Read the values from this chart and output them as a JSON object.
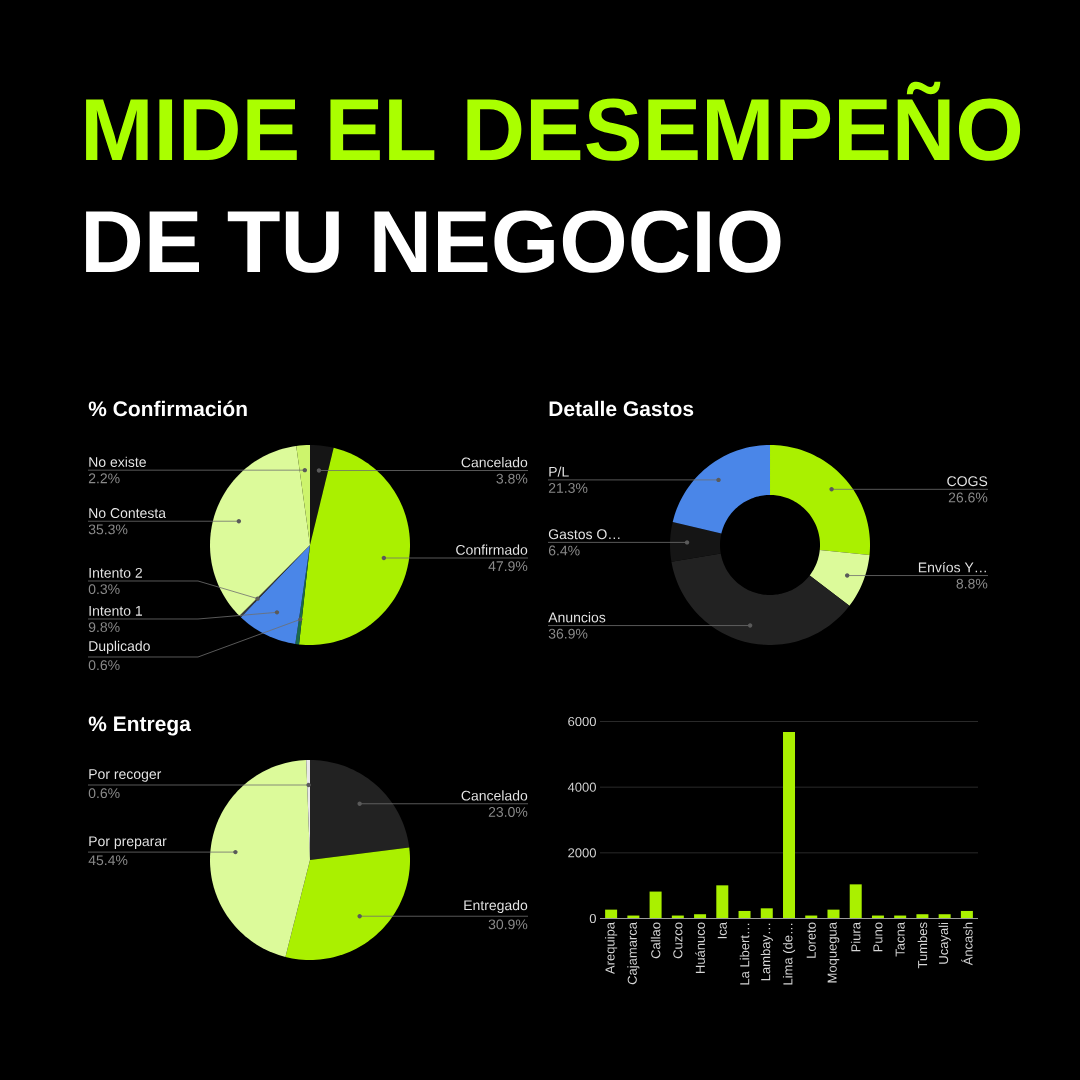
{
  "chart_data": [
    {
      "type": "other",
      "title": "MIDE EL DESEMPEÑO",
      "subtitle": "DE TU NEGOCIO"
    },
    {
      "type": "pie",
      "title": "% Confirmación",
      "categories": [
        "Cancelado",
        "Confirmado",
        "Duplicado",
        "Intento 1",
        "Intento 2",
        "No Contesta",
        "No existe"
      ],
      "values": [
        3.8,
        47.9,
        0.6,
        9.8,
        0.3,
        35.3,
        2.2
      ],
      "colors": [
        "#151515",
        "#aaf000",
        "#1b6b4a",
        "#4a86e8",
        "#3a3a3a",
        "#dcfa9a",
        "#cdf46c"
      ],
      "value_labels": [
        "3.8%",
        "47.9%",
        "0.6%",
        "9.8%",
        "0.3%",
        "35.3%",
        "2.2%"
      ]
    },
    {
      "type": "donut",
      "title": "Detalle Gastos",
      "categories": [
        "COGS",
        "Envíos Y…",
        "Anuncios",
        "Gastos O…",
        "P/L"
      ],
      "values": [
        26.6,
        8.8,
        36.9,
        6.4,
        21.3
      ],
      "colors": [
        "#aaf000",
        "#dcfa9a",
        "#222222",
        "#151515",
        "#4a86e8"
      ],
      "value_labels": [
        "26.6%",
        "8.8%",
        "36.9%",
        "6.4%",
        "21.3%"
      ]
    },
    {
      "type": "pie",
      "title": "% Entrega",
      "categories": [
        "Cancelado",
        "Entregado",
        "Por preparar",
        "Por recoger"
      ],
      "values": [
        23.0,
        30.9,
        45.4,
        0.6
      ],
      "colors": [
        "#222222",
        "#aaf000",
        "#dcfa9a",
        "#e8e8e8"
      ],
      "value_labels": [
        "23.0%",
        "30.9%",
        "45.4%",
        "0.6%"
      ]
    },
    {
      "type": "bar",
      "categories": [
        "Arequipa",
        "Cajamarca",
        "Callao",
        "Cuzco",
        "Huánuco",
        "Ica",
        "La Libert…",
        "Lambay…",
        "Lima (de…",
        "Loreto",
        "Moquegua",
        "Piura",
        "Puno",
        "Tacna",
        "Tumbes",
        "Ucayali",
        "Áncash"
      ],
      "values": [
        270,
        90,
        820,
        90,
        130,
        1010,
        230,
        310,
        5680,
        90,
        270,
        1040,
        90,
        90,
        130,
        130,
        230
      ],
      "color": "#aaf000",
      "ylim": [
        0,
        6000
      ],
      "yticks": [
        0,
        2000,
        4000,
        6000
      ],
      "grid": "y"
    }
  ]
}
